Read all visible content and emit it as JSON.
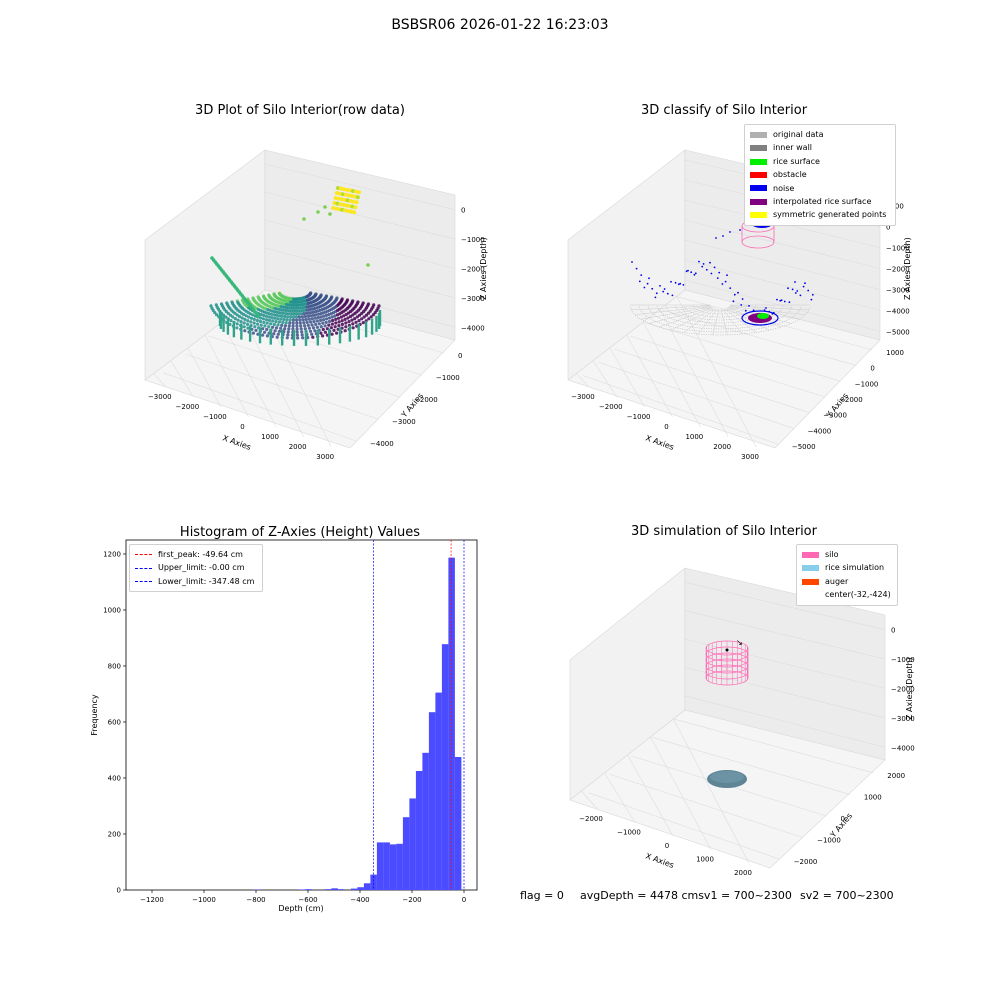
{
  "suptitle": "BSBSR06 2026-01-22 16:23:03",
  "panels": {
    "raw": {
      "title": "3D Plot of Silo Interior(row data)",
      "xlabel": "X Axies",
      "ylabel": "Y Axies",
      "zlabel": "Z Axies (Depth)",
      "xticks": [
        "−3000",
        "−2000",
        "−1000",
        "0",
        "1000",
        "2000",
        "3000"
      ],
      "yticks": [
        "0",
        "−1000",
        "−2000",
        "−3000",
        "−4000"
      ],
      "zticks": [
        "0",
        "−1000",
        "−2000",
        "−3000",
        "−4000"
      ]
    },
    "classify": {
      "title": "3D classify of Silo Interior",
      "xlabel": "X Axies",
      "ylabel": "Y Axies",
      "zlabel": "Z Axies (Depth)",
      "xticks": [
        "−3000",
        "−2000",
        "−1000",
        "0",
        "1000",
        "2000",
        "3000"
      ],
      "yticks": [
        "1000",
        "0",
        "−1000",
        "−2000",
        "−3000",
        "−4000",
        "−5000"
      ],
      "zticks": [
        "1000",
        "0",
        "−1000",
        "−2000",
        "−3000",
        "−4000",
        "−5000"
      ],
      "legend": [
        {
          "label": "original data",
          "color": "#b0b0b0"
        },
        {
          "label": "inner wall",
          "color": "#808080"
        },
        {
          "label": "rice surface",
          "color": "#00ee00"
        },
        {
          "label": "obstacle",
          "color": "#ff0000"
        },
        {
          "label": "noise",
          "color": "#0000ee"
        },
        {
          "label": "interpolated rice surface",
          "color": "#800080"
        },
        {
          "label": "symmetric generated points",
          "color": "#ffff00"
        }
      ]
    },
    "sim": {
      "title": "3D simulation of Silo Interior",
      "xlabel": "X Axies",
      "ylabel": "Y Axies",
      "zlabel": "Z Axies (Depth)",
      "xticks": [
        "−2000",
        "−1000",
        "0",
        "1000",
        "2000"
      ],
      "yticks": [
        "2000",
        "1000",
        "0",
        "−1000",
        "−2000"
      ],
      "zticks": [
        "0",
        "−1000",
        "−2000",
        "−3000",
        "−4000"
      ],
      "legend": [
        {
          "label": "silo",
          "color": "#ff69b4"
        },
        {
          "label": "rice simulation",
          "color": "#87ceeb"
        },
        {
          "label": "auger",
          "color": "#ff4500"
        },
        {
          "label": "center(-32,-424)",
          "color": ""
        }
      ]
    }
  },
  "footer": {
    "flag": "flag = 0",
    "avg": "avgDepth = 4478 cmsv1 = 700~2300",
    "sv2": "sv2 = 700~2300"
  },
  "chart_data": [
    {
      "type": "scatter",
      "title": "3D Plot of Silo Interior(row data)",
      "xlabel": "X Axies",
      "ylabel": "Y Axies",
      "zlabel": "Z Axies (Depth)",
      "xlim": [
        -3500,
        3500
      ],
      "ylim": [
        -4500,
        500
      ],
      "zlim": [
        -4500,
        500
      ],
      "colormap": "viridis"
    },
    {
      "type": "scatter",
      "title": "3D classify of Silo Interior",
      "xlabel": "X Axies",
      "ylabel": "Y Axies",
      "zlabel": "Z Axies (Depth)",
      "xlim": [
        -3500,
        3500
      ],
      "ylim": [
        -5500,
        1500
      ],
      "zlim": [
        -5500,
        1500
      ]
    },
    {
      "type": "bar",
      "title": "Histogram of Z-Axies (Height) Values",
      "xlabel": "Depth (cm)",
      "ylabel": "Frequency",
      "xlim": [
        -1300,
        50
      ],
      "ylim": [
        0,
        1250
      ],
      "xticks": [
        -1200,
        -1000,
        -800,
        -600,
        -400,
        -200,
        0
      ],
      "yticks": [
        0,
        200,
        400,
        600,
        800,
        1000,
        1200
      ],
      "bar_color": "#4b4bff",
      "bins": [
        {
          "x0": -810,
          "x1": -785,
          "count": 2
        },
        {
          "x0": -635,
          "x1": -610,
          "count": 2
        },
        {
          "x0": -610,
          "x1": -585,
          "count": 3
        },
        {
          "x0": -535,
          "x1": -510,
          "count": 3
        },
        {
          "x0": -510,
          "x1": -485,
          "count": 6
        },
        {
          "x0": -485,
          "x1": -460,
          "count": 3
        },
        {
          "x0": -435,
          "x1": -410,
          "count": 5
        },
        {
          "x0": -410,
          "x1": -385,
          "count": 10
        },
        {
          "x0": -385,
          "x1": -360,
          "count": 24
        },
        {
          "x0": -360,
          "x1": -335,
          "count": 55
        },
        {
          "x0": -335,
          "x1": -310,
          "count": 170
        },
        {
          "x0": -310,
          "x1": -285,
          "count": 170
        },
        {
          "x0": -285,
          "x1": -260,
          "count": 163
        },
        {
          "x0": -260,
          "x1": -235,
          "count": 165
        },
        {
          "x0": -235,
          "x1": -210,
          "count": 260
        },
        {
          "x0": -210,
          "x1": -185,
          "count": 327
        },
        {
          "x0": -185,
          "x1": -160,
          "count": 425
        },
        {
          "x0": -160,
          "x1": -135,
          "count": 490
        },
        {
          "x0": -135,
          "x1": -110,
          "count": 635
        },
        {
          "x0": -110,
          "x1": -85,
          "count": 705
        },
        {
          "x0": -85,
          "x1": -60,
          "count": 878
        },
        {
          "x0": -60,
          "x1": -35,
          "count": 1187
        },
        {
          "x0": -35,
          "x1": -10,
          "count": 475
        }
      ],
      "vlines": [
        {
          "x": -49.64,
          "label": "first_peak: -49.64 cm",
          "color": "#ff0000"
        },
        {
          "x": -0.0,
          "label": "Upper_limit: -0.00 cm",
          "color": "#0000ff"
        },
        {
          "x": -347.48,
          "label": "Lower_limit: -347.48 cm",
          "color": "#0000ff"
        }
      ],
      "legend": "upper-left"
    },
    {
      "type": "scatter",
      "title": "3D simulation of Silo Interior",
      "xlabel": "X Axies",
      "ylabel": "Y Axies",
      "zlabel": "Z Axies (Depth)",
      "xlim": [
        -2500,
        2500
      ],
      "ylim": [
        -2500,
        2500
      ],
      "zlim": [
        -4500,
        500
      ],
      "center": [
        -32,
        -424
      ]
    }
  ]
}
